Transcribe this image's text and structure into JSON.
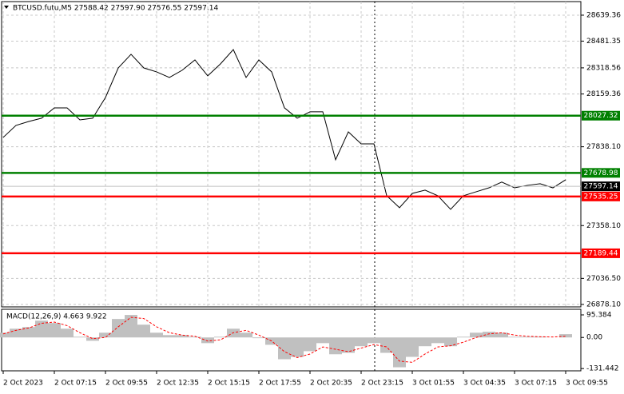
{
  "chart_data": [
    {
      "type": "line",
      "title": "BTCUSD.futu,M5  27588.42 27597.90 27576.55 27597.14",
      "color": "#000000",
      "grid": true,
      "categories": [
        "2 Oct 2023",
        null,
        null,
        null,
        "2 Oct 07:15",
        null,
        null,
        null,
        "2 Oct 09:55",
        null,
        null,
        null,
        "2 Oct 12:35",
        null,
        null,
        null,
        "2 Oct 15:15",
        null,
        null,
        null,
        "2 Oct 17:55",
        null,
        null,
        null,
        "2 Oct 20:35",
        null,
        null,
        null,
        "2 Oct 23:15",
        null,
        null,
        null,
        "3 Oct 01:55",
        null,
        null,
        null,
        "3 Oct 04:35",
        null,
        null,
        null,
        "3 Oct 07:15",
        null,
        null,
        null,
        "3 Oct 09:55"
      ],
      "values": [
        27895,
        27968,
        27992,
        28012,
        28075,
        28075,
        28002,
        28012,
        28138,
        28318,
        28401,
        28318,
        28294,
        28260,
        28304,
        28367,
        28270,
        28343,
        28430,
        28260,
        28367,
        28294,
        28075,
        28012,
        28051,
        28051,
        27759,
        27929,
        27856,
        27856,
        27540,
        27467,
        27554,
        27574,
        27540,
        27457,
        27540,
        27564,
        27588,
        27623,
        27588,
        27603,
        27613,
        27588,
        27637
      ],
      "ylim": [
        26863,
        28722
      ],
      "yticks": [
        28639.36,
        28481.35,
        28318.56,
        28159.36,
        {
          "value": 27838.1,
          "label": "27838.10"
        },
        {
          "value": 27358.1,
          "label": "27358.10"
        },
        {
          "value": 27036.5,
          "label": "27036.50"
        },
        {
          "value": 26878.1,
          "label": "26878.10"
        }
      ],
      "levels": [
        {
          "value": 28027.32,
          "color": "#008000"
        },
        {
          "value": 27678.98,
          "color": "#008000"
        },
        {
          "value": 27597.14,
          "color": "#000000"
        },
        {
          "value": 27535.25,
          "color": "#ff0000"
        },
        {
          "value": 27189.44,
          "color": "#ff0000"
        }
      ]
    },
    {
      "type": "bar",
      "title": "MACD(12,26,9) 4.663 9.922",
      "color": "#c0c0c0",
      "values": [
        20,
        37,
        44,
        71,
        61,
        37,
        3,
        -14,
        20,
        78,
        95,
        54,
        20,
        10,
        10,
        3,
        -24,
        3,
        37,
        20,
        -3,
        -31,
        -92,
        -82,
        -58,
        -24,
        -71,
        -65,
        -37,
        -24,
        -65,
        -126,
        -82,
        -37,
        -24,
        -37,
        3,
        20,
        24,
        20,
        3,
        3,
        3,
        0,
        14
      ],
      "signal": {
        "color": "#ff0000",
        "values": [
          15,
          30,
          40,
          60,
          65,
          50,
          20,
          -5,
          0,
          45,
          85,
          80,
          45,
          20,
          10,
          5,
          -15,
          -10,
          20,
          30,
          10,
          -15,
          -60,
          -85,
          -70,
          -40,
          -50,
          -60,
          -45,
          -30,
          -40,
          -100,
          -105,
          -70,
          -40,
          -35,
          -20,
          0,
          15,
          20,
          10,
          5,
          3,
          2,
          5
        ]
      },
      "ylim": [
        -141,
        119
      ],
      "yticks": [
        95.384,
        {
          "value": 0,
          "label": "0.00"
        },
        -131.442
      ]
    }
  ]
}
